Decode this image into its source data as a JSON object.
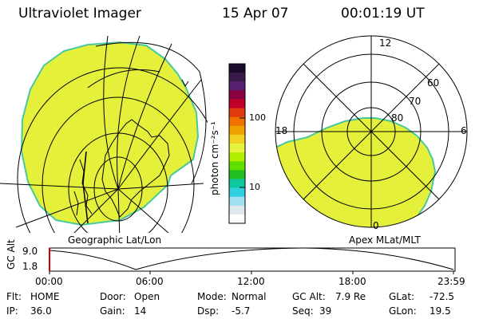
{
  "header": {
    "title": "Ultraviolet Imager",
    "date": "15 Apr 07",
    "time": "00:01:19 UT"
  },
  "colors": {
    "image_fill": "#e5f03a",
    "image_edge": "#48c8a0",
    "grid_line": "#000000"
  },
  "left_panel": {
    "label": "Geographic Lat/Lon"
  },
  "right_panel": {
    "label": "Apex MLat/MLT",
    "mlt_labels": {
      "top": "12",
      "left": "18",
      "right": "6",
      "bottom": "0"
    },
    "mlat_labels": [
      "60",
      "70",
      "80"
    ]
  },
  "colorbar": {
    "unit_label": "photon cm⁻²s⁻¹",
    "ticks": [
      "100",
      "10"
    ],
    "colors": [
      "#1a0a2e",
      "#3a1a4a",
      "#5a2070",
      "#8a0040",
      "#c0002a",
      "#e03a10",
      "#f07000",
      "#f0a000",
      "#f0d020",
      "#e8f040",
      "#b0f000",
      "#60e000",
      "#20c020",
      "#10c8a0",
      "#30d0e0",
      "#a0e0f0",
      "#e0e8f0",
      "#ffffff"
    ]
  },
  "altitude": {
    "axis_label": "GC Alt",
    "ticks": [
      "9.0",
      "1.8"
    ],
    "time_ticks": [
      "00:00",
      "06:00",
      "12:00",
      "18:00",
      "23:59"
    ]
  },
  "status": {
    "filter_label": "Flt:",
    "filter": "HOME",
    "ip_label": "IP:",
    "ip": "36.0",
    "door_label": "Door:",
    "door": "Open",
    "gain_label": "Gain:",
    "gain": "14",
    "mode_label": "Mode:",
    "mode": "Normal",
    "dsp_label": "Dsp:",
    "dsp": "-5.7",
    "gcalt_label": "GC Alt:",
    "gcalt": "7.9 Re",
    "seq_label": "Seq:",
    "seq": "39",
    "glat_label": "GLat:",
    "glat": "-72.5",
    "glon_label": "GLon:",
    "glon": "19.5"
  }
}
